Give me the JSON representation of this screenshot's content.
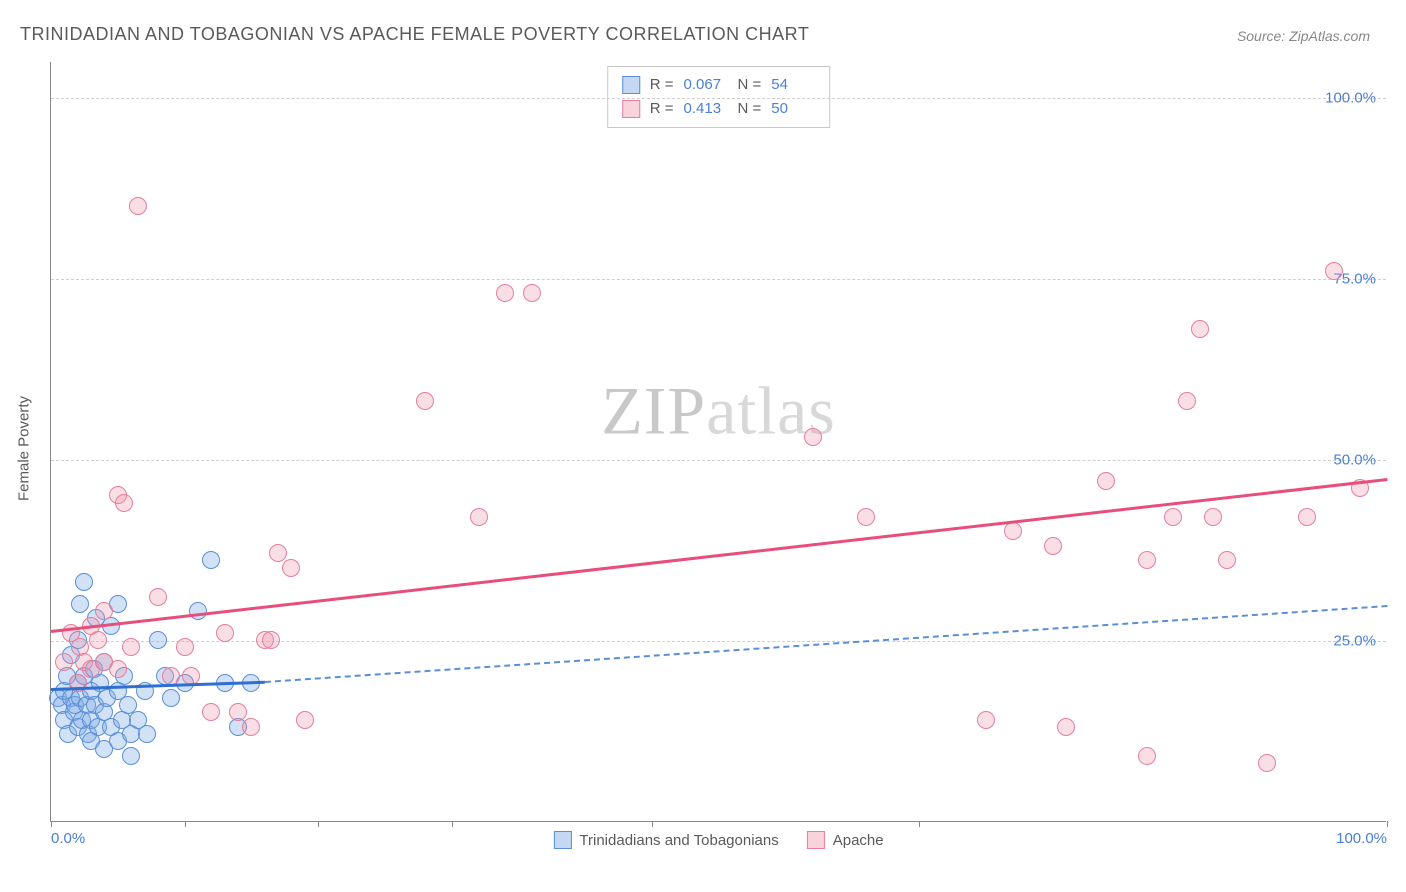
{
  "header": {
    "title": "TRINIDADIAN AND TOBAGONIAN VS APACHE FEMALE POVERTY CORRELATION CHART",
    "source_prefix": "Source: ",
    "source_name": "ZipAtlas.com"
  },
  "chart": {
    "type": "scatter",
    "ylabel": "Female Poverty",
    "xlim": [
      0,
      100
    ],
    "ylim": [
      0,
      105
    ],
    "yticks": [
      25,
      50,
      75,
      100
    ],
    "ytick_labels": [
      "25.0%",
      "50.0%",
      "75.0%",
      "100.0%"
    ],
    "xticks": [
      0,
      10,
      20,
      30,
      45,
      65,
      100
    ],
    "xtick_labels_ends": {
      "left": "0.0%",
      "right": "100.0%"
    },
    "background_color": "#ffffff",
    "grid_color": "#d0d0d0",
    "axis_color": "#888888",
    "marker_radius": 9,
    "series": [
      {
        "key": "trinidadian",
        "label": "Trinidadians and Tobagonians",
        "fill": "rgba(124,169,230,0.35)",
        "stroke": "#5a8fd8",
        "R": "0.067",
        "N": "54",
        "trend": {
          "x1": 0,
          "y1": 18.5,
          "x2_solid": 16,
          "y2_solid": 19.5,
          "x2_dash": 100,
          "y2_dash": 30,
          "color_solid": "#2f6fd0",
          "color_dash": "#5a8fd8"
        },
        "points": [
          [
            0.5,
            17
          ],
          [
            0.8,
            16
          ],
          [
            1,
            18
          ],
          [
            1,
            14
          ],
          [
            1.2,
            20
          ],
          [
            1.3,
            12
          ],
          [
            1.5,
            17
          ],
          [
            1.5,
            23
          ],
          [
            1.7,
            15
          ],
          [
            1.8,
            16
          ],
          [
            2,
            19
          ],
          [
            2,
            13
          ],
          [
            2,
            25
          ],
          [
            2.2,
            17
          ],
          [
            2.2,
            30
          ],
          [
            2.3,
            14
          ],
          [
            2.5,
            20
          ],
          [
            2.5,
            33
          ],
          [
            2.7,
            16
          ],
          [
            2.8,
            12
          ],
          [
            3,
            18
          ],
          [
            3,
            14
          ],
          [
            3,
            11
          ],
          [
            3.2,
            21
          ],
          [
            3.3,
            16
          ],
          [
            3.4,
            28
          ],
          [
            3.5,
            13
          ],
          [
            3.7,
            19
          ],
          [
            4,
            15
          ],
          [
            4,
            22
          ],
          [
            4,
            10
          ],
          [
            4.2,
            17
          ],
          [
            4.5,
            27
          ],
          [
            4.5,
            13
          ],
          [
            5,
            30
          ],
          [
            5,
            18
          ],
          [
            5,
            11
          ],
          [
            5.3,
            14
          ],
          [
            5.5,
            20
          ],
          [
            5.8,
            16
          ],
          [
            6,
            12
          ],
          [
            6,
            9
          ],
          [
            6.5,
            14
          ],
          [
            7,
            18
          ],
          [
            7.2,
            12
          ],
          [
            8,
            25
          ],
          [
            8.5,
            20
          ],
          [
            9,
            17
          ],
          [
            10,
            19
          ],
          [
            11,
            29
          ],
          [
            12,
            36
          ],
          [
            13,
            19
          ],
          [
            14,
            13
          ],
          [
            15,
            19
          ]
        ]
      },
      {
        "key": "apache",
        "label": "Apache",
        "fill": "rgba(238,145,168,0.30)",
        "stroke": "#e57f9c",
        "R": "0.413",
        "N": "50",
        "trend": {
          "x1": 0,
          "y1": 26.5,
          "x2_solid": 100,
          "y2_solid": 47.5,
          "color_solid": "#e84e7b"
        },
        "points": [
          [
            1,
            22
          ],
          [
            1.5,
            26
          ],
          [
            2,
            19
          ],
          [
            2.2,
            24
          ],
          [
            2.5,
            22
          ],
          [
            3,
            27
          ],
          [
            3,
            21
          ],
          [
            3.5,
            25
          ],
          [
            4,
            29
          ],
          [
            4,
            22
          ],
          [
            5,
            21
          ],
          [
            5,
            45
          ],
          [
            5.5,
            44
          ],
          [
            6,
            24
          ],
          [
            6.5,
            85
          ],
          [
            8,
            31
          ],
          [
            9,
            20
          ],
          [
            10,
            24
          ],
          [
            10.5,
            20
          ],
          [
            12,
            15
          ],
          [
            13,
            26
          ],
          [
            14,
            15
          ],
          [
            15,
            13
          ],
          [
            16,
            25
          ],
          [
            16.5,
            25
          ],
          [
            17,
            37
          ],
          [
            18,
            35
          ],
          [
            19,
            14
          ],
          [
            28,
            58
          ],
          [
            32,
            42
          ],
          [
            34,
            73
          ],
          [
            36,
            73
          ],
          [
            57,
            53
          ],
          [
            61,
            42
          ],
          [
            70,
            14
          ],
          [
            72,
            40
          ],
          [
            75,
            38
          ],
          [
            76,
            13
          ],
          [
            79,
            47
          ],
          [
            82,
            36
          ],
          [
            84,
            42
          ],
          [
            85,
            58
          ],
          [
            86,
            68
          ],
          [
            87,
            42
          ],
          [
            88,
            36
          ],
          [
            91,
            8
          ],
          [
            94,
            42
          ],
          [
            96,
            76
          ],
          [
            98,
            46
          ],
          [
            82,
            9
          ]
        ]
      }
    ],
    "stats_legend": {
      "r_label": "R =",
      "n_label": "N ="
    },
    "watermark": {
      "zip": "ZIP",
      "atlas": "atlas"
    }
  }
}
